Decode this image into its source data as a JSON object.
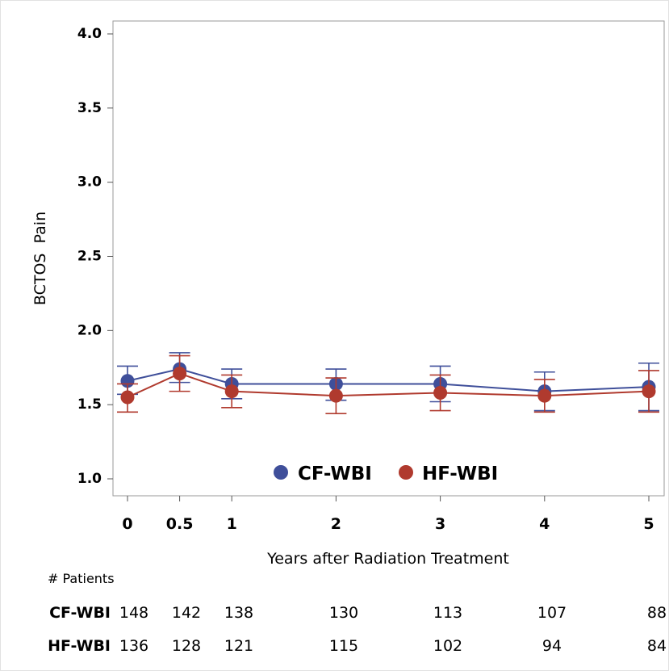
{
  "chart_data": {
    "type": "line",
    "title": "",
    "xlabel": "Years after Radiation Treatment",
    "ylabel": "BCTOS  Pain",
    "ylim": [
      1.0,
      4.0
    ],
    "y_ticks": [
      "1.0",
      "1.5",
      "2.0",
      "2.5",
      "3.0",
      "3.5",
      "4.0"
    ],
    "x": [
      0,
      0.5,
      1,
      2,
      3,
      4,
      5
    ],
    "x_tick_labels": [
      "0",
      "0.5",
      "1",
      "2",
      "3",
      "4",
      "5"
    ],
    "grid": false,
    "legend_position": "bottom-center inside plot",
    "series": [
      {
        "name": "CF-WBI",
        "color": "#3f4f9a",
        "values": [
          1.66,
          1.74,
          1.64,
          1.64,
          1.64,
          1.59,
          1.62
        ],
        "lower": [
          1.57,
          1.65,
          1.54,
          1.53,
          1.52,
          1.46,
          1.46
        ],
        "upper": [
          1.76,
          1.85,
          1.74,
          1.74,
          1.76,
          1.72,
          1.78
        ]
      },
      {
        "name": "HF-WBI",
        "color": "#b03a2e",
        "values": [
          1.55,
          1.71,
          1.59,
          1.56,
          1.58,
          1.56,
          1.59
        ],
        "lower": [
          1.45,
          1.59,
          1.48,
          1.44,
          1.46,
          1.45,
          1.45
        ],
        "upper": [
          1.64,
          1.83,
          1.7,
          1.68,
          1.7,
          1.67,
          1.73
        ]
      }
    ]
  },
  "risk_table": {
    "title": "# Patients",
    "rows": [
      {
        "name": "CF-WBI",
        "counts": [
          "148",
          "142",
          "138",
          "130",
          "113",
          "107",
          "88"
        ]
      },
      {
        "name": "HF-WBI",
        "counts": [
          "136",
          "128",
          "121",
          "115",
          "102",
          "94",
          "84"
        ]
      }
    ]
  }
}
